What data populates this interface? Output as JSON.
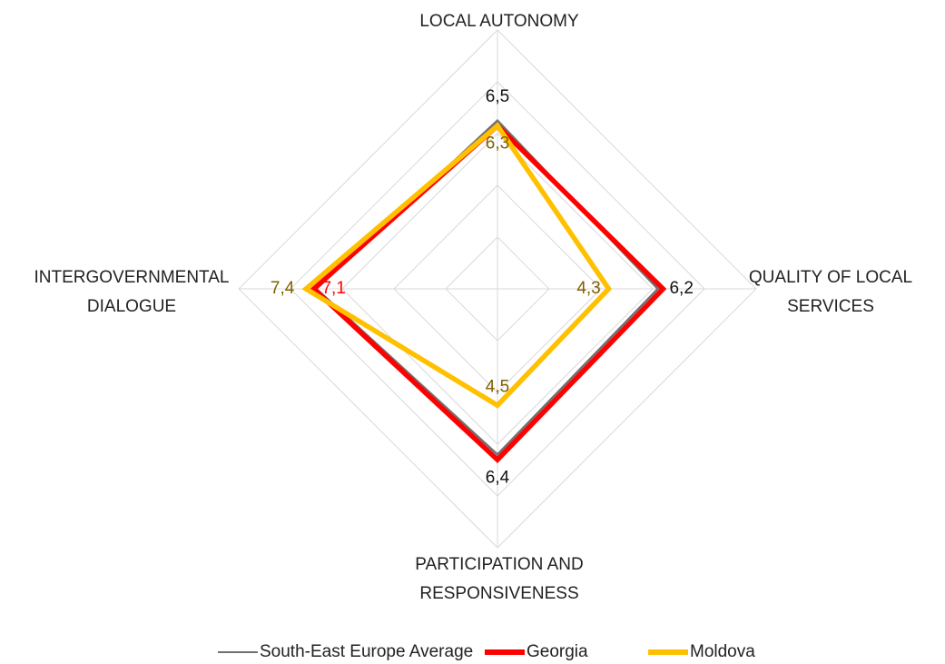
{
  "chart_data": {
    "type": "radar",
    "categories": [
      "LOCAL AUTONOMY",
      "QUALITY OF LOCAL SERVICES",
      "PARTICIPATION AND RESPONSIVENESS",
      "INTERGOVERNMENTAL DIALOGUE"
    ],
    "rlim": [
      0,
      10
    ],
    "rticks": [
      2,
      4,
      6,
      8,
      10
    ],
    "grid": true,
    "legend": "bottom",
    "series": [
      {
        "name": "South-East Europe Average",
        "color": "#707070",
        "values": [
          6.5,
          6.2,
          6.4,
          7.0
        ],
        "value_labels": [
          "6,5",
          "6,2",
          "6,4",
          null
        ]
      },
      {
        "name": "Georgia",
        "color": "#ff0000",
        "values": [
          6.3,
          6.4,
          6.6,
          7.1
        ],
        "value_labels": [
          null,
          null,
          null,
          "7,1"
        ]
      },
      {
        "name": "Moldova",
        "color": "#ffc000",
        "values": [
          6.3,
          4.3,
          4.5,
          7.4
        ],
        "value_labels": [
          "6,3",
          "4,3",
          "4,5",
          "7,4"
        ]
      }
    ]
  }
}
